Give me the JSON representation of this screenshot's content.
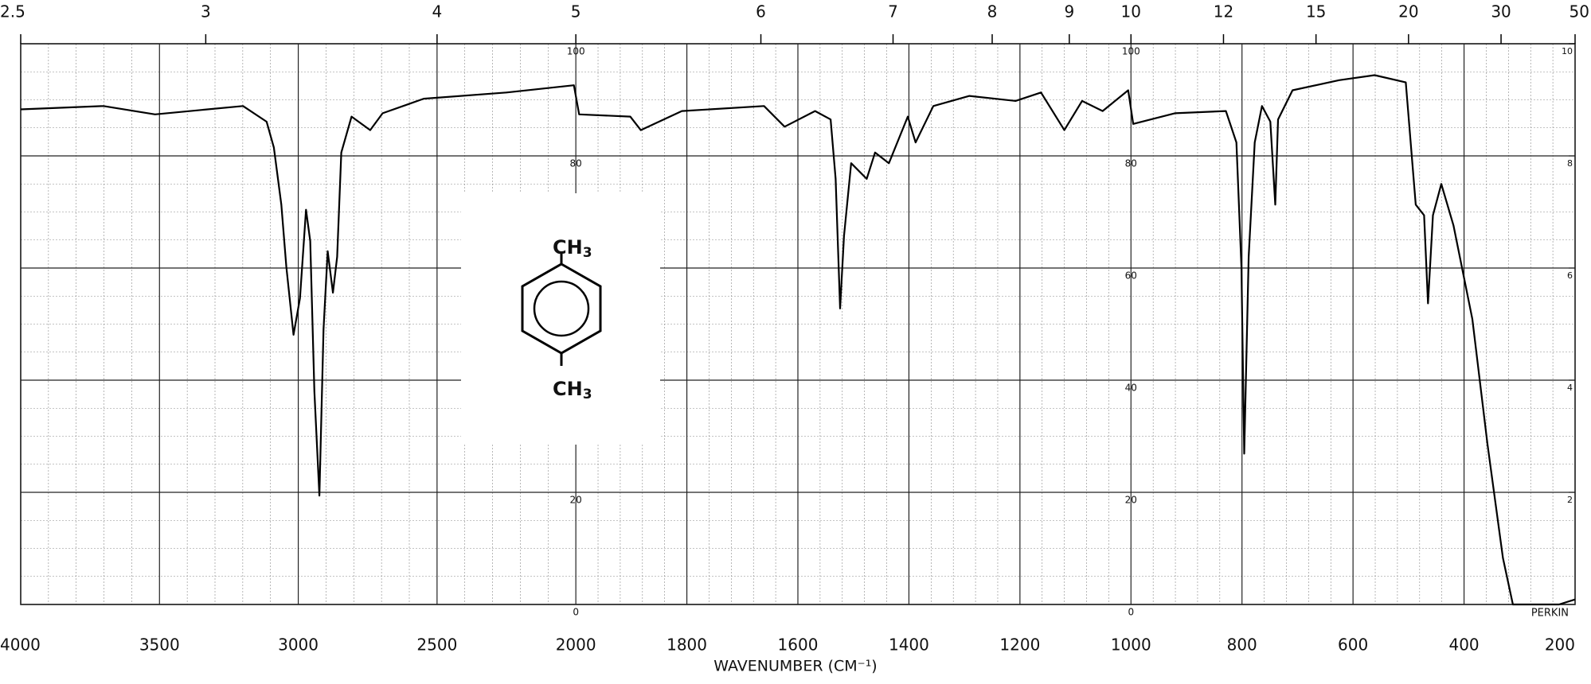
{
  "chart_data": {
    "type": "line",
    "x_label": "WAVENUMBER (CM⁻¹)",
    "xlim": [
      4000,
      200
    ],
    "x_scale_break": 2000,
    "xticks": [
      4000,
      3500,
      3000,
      2500,
      2000,
      1800,
      1600,
      1400,
      1200,
      1000,
      800,
      600,
      400,
      200
    ],
    "top_ticks": [
      2.5,
      3,
      4,
      5,
      6,
      7,
      8,
      9,
      10,
      12,
      15,
      20,
      30,
      50
    ],
    "ylim": [
      0,
      100
    ],
    "yticks": [
      0,
      20,
      40,
      60,
      80,
      100
    ],
    "y2lim": [
      0,
      10
    ],
    "y2ticks": [
      2,
      4,
      6,
      8,
      10
    ],
    "grid": true,
    "color": "#000000",
    "brand": "PERKIN",
    "structure": {
      "top": {
        "text": "CH",
        "sub": "3"
      },
      "bottom": {
        "text": "CH",
        "sub": "3"
      }
    },
    "x": [
      4000,
      3702,
      3516,
      3199,
      3114,
      3088,
      3061,
      3043,
      3017,
      2994,
      2972,
      2957,
      2942,
      2924,
      2909,
      2894,
      2875,
      2860,
      2845,
      2808,
      2741,
      2696,
      2548,
      2250,
      2007,
      1994,
      1902,
      1883,
      1809,
      1661,
      1624,
      1569,
      1541,
      1532,
      1524,
      1517,
      1504,
      1476,
      1461,
      1436,
      1402,
      1388,
      1356,
      1291,
      1208,
      1162,
      1120,
      1088,
      1051,
      1005,
      996,
      921,
      829,
      810,
      801,
      796,
      788,
      777,
      764,
      749,
      740,
      735,
      709,
      625,
      561,
      505,
      487,
      472,
      465,
      456,
      441,
      419,
      385,
      358,
      330,
      312,
      229,
      200
    ],
    "values": [
      88.3,
      88.9,
      87.4,
      88.9,
      86.1,
      81.5,
      71.3,
      60.2,
      48.1,
      54.6,
      70.4,
      64.8,
      38.0,
      19.4,
      49.1,
      63.0,
      55.6,
      62.0,
      80.6,
      87.0,
      84.6,
      87.6,
      90.2,
      91.3,
      92.6,
      87.4,
      87.0,
      84.6,
      88.0,
      88.9,
      85.2,
      88.0,
      86.5,
      75.9,
      52.8,
      65.7,
      78.7,
      75.9,
      80.6,
      78.7,
      87.0,
      82.4,
      88.9,
      90.7,
      89.8,
      91.3,
      84.6,
      89.8,
      88.0,
      91.7,
      85.7,
      87.6,
      88.0,
      82.4,
      60.2,
      26.9,
      62.0,
      82.4,
      88.9,
      86.1,
      71.3,
      86.5,
      91.7,
      93.5,
      94.4,
      93.1,
      71.3,
      69.4,
      53.7,
      69.4,
      75.0,
      67.6,
      50.9,
      28.7,
      8.3,
      0,
      0,
      0.9
    ]
  }
}
